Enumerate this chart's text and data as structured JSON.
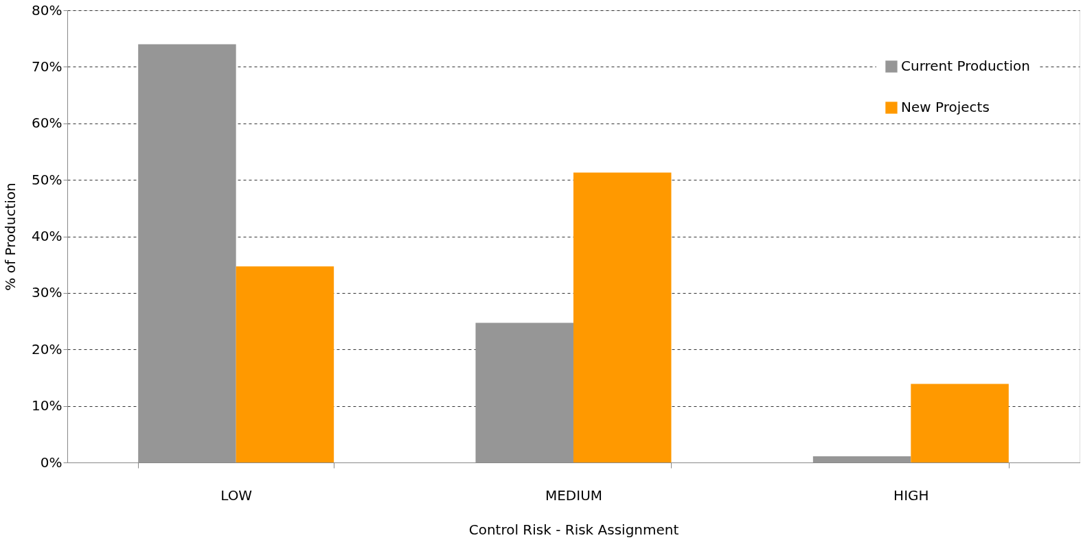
{
  "chart_data": {
    "type": "bar",
    "xlabel": "Control Risk - Risk Assignment",
    "ylabel": "% of Production",
    "categories": [
      "LOW",
      "MEDIUM",
      "HIGH"
    ],
    "series": [
      {
        "name": "Current Production",
        "color": "#969696",
        "values": [
          74,
          24.7,
          1.1
        ]
      },
      {
        "name": "New Projects",
        "color": "#ff9900",
        "values": [
          34.7,
          51.3,
          13.9
        ]
      }
    ],
    "ylim": [
      0,
      80
    ],
    "yticks": [
      {
        "value": 0,
        "label": "0%"
      },
      {
        "value": 10,
        "label": "10%"
      },
      {
        "value": 20,
        "label": "20%"
      },
      {
        "value": 30,
        "label": "30%"
      },
      {
        "value": 40,
        "label": "40%"
      },
      {
        "value": 50,
        "label": "50%"
      },
      {
        "value": 60,
        "label": "60%"
      },
      {
        "value": 70,
        "label": "70%"
      },
      {
        "value": 80,
        "label": "80%"
      }
    ],
    "grid": "y",
    "line_style": "dashed",
    "legend": "top right"
  }
}
